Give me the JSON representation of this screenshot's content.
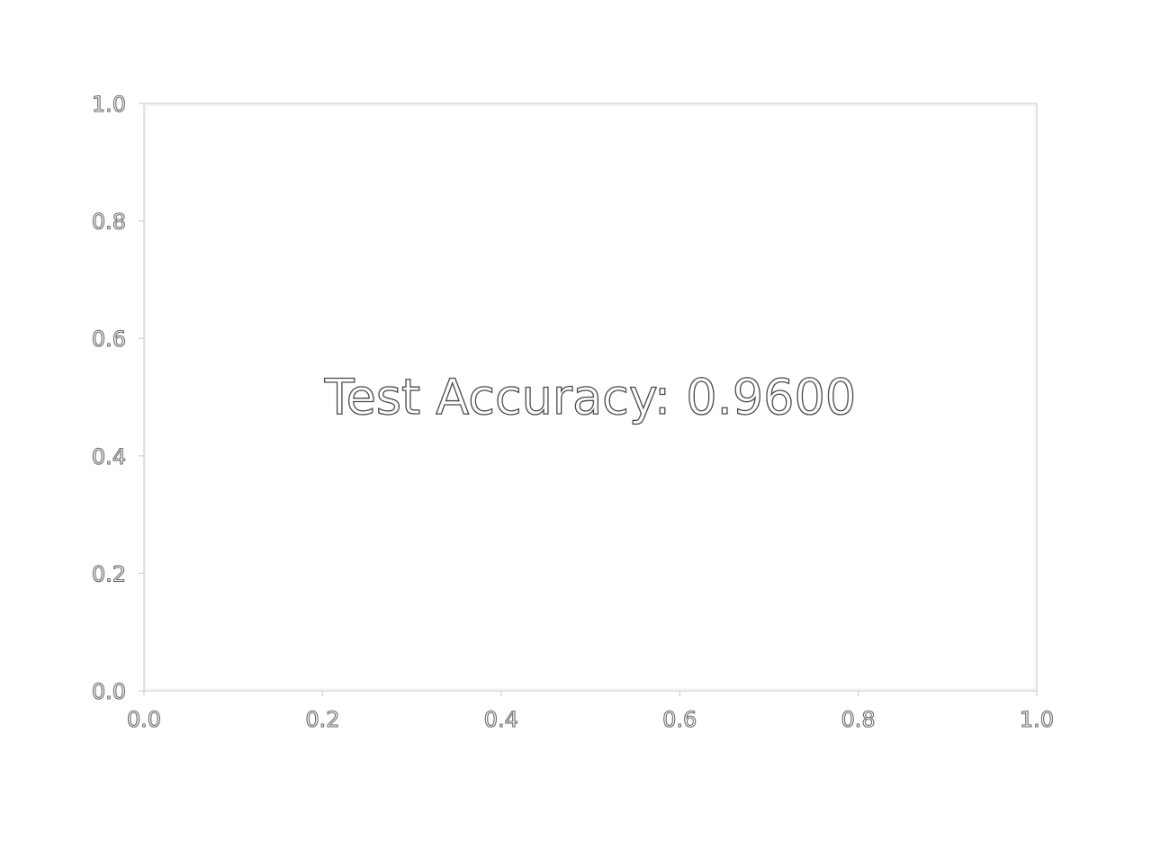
{
  "chart_data": {
    "type": "scatter",
    "title": "",
    "xlabel": "",
    "ylabel": "",
    "xlim": [
      0.0,
      1.0
    ],
    "ylim": [
      0.0,
      1.0
    ],
    "x_ticks": [
      "0.0",
      "0.2",
      "0.4",
      "0.6",
      "0.8",
      "1.0"
    ],
    "y_ticks": [
      "0.0",
      "0.2",
      "0.4",
      "0.6",
      "0.8",
      "1.0"
    ],
    "grid": false,
    "series": [],
    "annotations": [
      {
        "text": "Test Accuracy: 0.9600",
        "x": 0.5,
        "y": 0.5
      }
    ]
  }
}
